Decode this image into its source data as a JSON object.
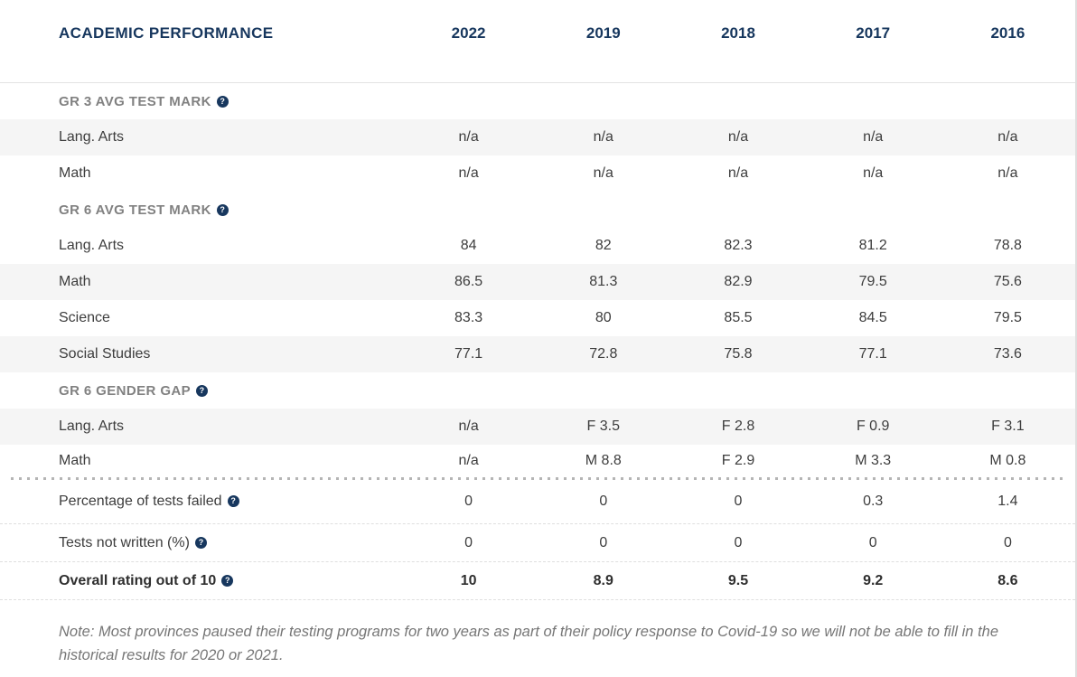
{
  "colors": {
    "accent_navy": "#17375E",
    "section_gray": "#818181",
    "body_text": "#3d3d3d",
    "shaded_row_bg": "#f5f5f5",
    "note_gray": "#767676"
  },
  "icons": {
    "help": "?"
  },
  "header": {
    "title": "ACADEMIC PERFORMANCE",
    "years": [
      "2022",
      "2019",
      "2018",
      "2017",
      "2016"
    ]
  },
  "sections": [
    {
      "title": "GR 3 AVG TEST MARK",
      "rows": [
        {
          "label": "Lang. Arts",
          "values": [
            "n/a",
            "n/a",
            "n/a",
            "n/a",
            "n/a"
          ]
        },
        {
          "label": "Math",
          "values": [
            "n/a",
            "n/a",
            "n/a",
            "n/a",
            "n/a"
          ]
        }
      ]
    },
    {
      "title": "GR 6 AVG TEST MARK",
      "rows": [
        {
          "label": "Lang. Arts",
          "values": [
            "84",
            "82",
            "82.3",
            "81.2",
            "78.8"
          ]
        },
        {
          "label": "Math",
          "values": [
            "86.5",
            "81.3",
            "82.9",
            "79.5",
            "75.6"
          ]
        },
        {
          "label": "Science",
          "values": [
            "83.3",
            "80",
            "85.5",
            "84.5",
            "79.5"
          ]
        },
        {
          "label": "Social Studies",
          "values": [
            "77.1",
            "72.8",
            "75.8",
            "77.1",
            "73.6"
          ]
        }
      ]
    },
    {
      "title": "GR 6 GENDER GAP",
      "rows": [
        {
          "label": "Lang. Arts",
          "values": [
            "n/a",
            "F 3.5",
            "F 2.8",
            "F 0.9",
            "F 3.1"
          ]
        },
        {
          "label": "Math",
          "values": [
            "n/a",
            "M 8.8",
            "F 2.9",
            "M 3.3",
            "M 0.8"
          ]
        }
      ]
    }
  ],
  "summary_rows": [
    {
      "label": "Percentage of tests failed",
      "values": [
        "0",
        "0",
        "0",
        "0.3",
        "1.4"
      ]
    },
    {
      "label": "Tests not written (%)",
      "values": [
        "0",
        "0",
        "0",
        "0",
        "0"
      ]
    },
    {
      "label": "Overall rating out of 10",
      "values": [
        "10",
        "8.9",
        "9.5",
        "9.2",
        "8.6"
      ]
    }
  ],
  "note": "Note: Most provinces paused their testing programs for two years as part of their policy response to Covid-19 so we will not be able to fill in the historical results for 2020 or 2021."
}
